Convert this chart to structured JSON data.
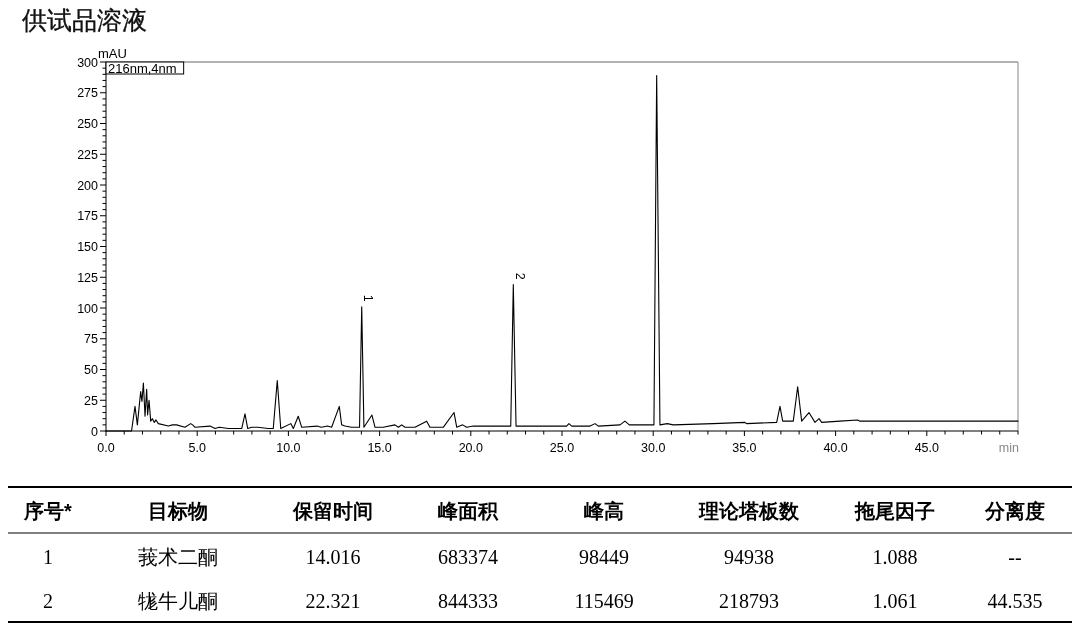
{
  "chart_data": [
    {
      "type": "line",
      "title": "供试品溶液",
      "xlabel": "min",
      "ylabel": "mAU",
      "color": "#000000",
      "x": [
        0,
        1.4,
        1.59,
        1.72,
        1.9,
        1.97,
        2.05,
        2.14,
        2.23,
        2.28,
        2.36,
        2.45,
        2.54,
        2.65,
        2.74,
        2.87,
        3.42,
        3.64,
        3.87,
        4.33,
        4.64,
        4.75,
        4.88,
        5.7,
        5.98,
        6.21,
        6.71,
        7.44,
        7.62,
        7.77,
        7.99,
        8.32,
        8.9,
        9.17,
        9.39,
        9.58,
        10.13,
        10.27,
        10.54,
        10.73,
        11.58,
        11.8,
        12.15,
        12.37,
        12.79,
        12.92,
        13.1,
        13.47,
        13.9,
        14.02,
        14.14,
        14.58,
        14.75,
        15.2,
        15.84,
        16.03,
        16.21,
        16.39,
        16.94,
        17.58,
        17.76,
        18.49,
        19.08,
        19.23,
        19.55,
        19.77,
        20.14,
        21.05,
        21.97,
        22.19,
        22.33,
        22.48,
        23.79,
        25.25,
        25.38,
        25.53,
        26.54,
        26.81,
        26.99,
        28.18,
        28.45,
        28.69,
        30.04,
        30.19,
        30.37,
        30.77,
        31.1,
        33.29,
        35.03,
        35.12,
        36.77,
        36.95,
        37.1,
        37.68,
        37.92,
        38.14,
        38.54,
        38.87,
        39.09,
        39.24,
        40.24,
        41.2,
        41.34,
        42.43,
        45.18,
        50
      ],
      "values": [
        0,
        0,
        20,
        5,
        32,
        24,
        39,
        12,
        34,
        13,
        25,
        8,
        10,
        7,
        9,
        6,
        4,
        5,
        5,
        3,
        6,
        5,
        3,
        4,
        2,
        3,
        2,
        2,
        14,
        2,
        3,
        3,
        2,
        2,
        41,
        2,
        6,
        2,
        12,
        3,
        4,
        3,
        4,
        3,
        20,
        5,
        4,
        3,
        3,
        101,
        3,
        13,
        3,
        3,
        5,
        3,
        5,
        3,
        3,
        8,
        3,
        3,
        15,
        3,
        5,
        3,
        4,
        4,
        4,
        4,
        119,
        4,
        4,
        4,
        6,
        4,
        4,
        6,
        4,
        5,
        8,
        5,
        5,
        289,
        5,
        6,
        5,
        6,
        7,
        6,
        7,
        20,
        8,
        8,
        36,
        8,
        15,
        7,
        10,
        7,
        8,
        9,
        8,
        8,
        8,
        8
      ],
      "xlim": [
        0,
        50
      ],
      "ylim": [
        0,
        300
      ],
      "xticks": [
        {
          "value": 0,
          "label": "0.0"
        },
        {
          "value": 1,
          "label": null
        },
        {
          "value": 2,
          "label": null
        },
        {
          "value": 3,
          "label": null
        },
        {
          "value": 4,
          "label": null
        },
        {
          "value": 5,
          "label": "5.0"
        },
        {
          "value": 6,
          "label": null
        },
        {
          "value": 7,
          "label": null
        },
        {
          "value": 8,
          "label": null
        },
        {
          "value": 9,
          "label": null
        },
        {
          "value": 10,
          "label": "10.0"
        },
        {
          "value": 11,
          "label": null
        },
        {
          "value": 12,
          "label": null
        },
        {
          "value": 13,
          "label": null
        },
        {
          "value": 14,
          "label": null
        },
        {
          "value": 15,
          "label": "15.0"
        },
        {
          "value": 16,
          "label": null
        },
        {
          "value": 17,
          "label": null
        },
        {
          "value": 18,
          "label": null
        },
        {
          "value": 19,
          "label": null
        },
        {
          "value": 20,
          "label": "20.0"
        },
        {
          "value": 21,
          "label": null
        },
        {
          "value": 22,
          "label": null
        },
        {
          "value": 23,
          "label": null
        },
        {
          "value": 24,
          "label": null
        },
        {
          "value": 25,
          "label": "25.0"
        },
        {
          "value": 26,
          "label": null
        },
        {
          "value": 27,
          "label": null
        },
        {
          "value": 28,
          "label": null
        },
        {
          "value": 29,
          "label": null
        },
        {
          "value": 30,
          "label": "30.0"
        },
        {
          "value": 31,
          "label": null
        },
        {
          "value": 32,
          "label": null
        },
        {
          "value": 33,
          "label": null
        },
        {
          "value": 34,
          "label": null
        },
        {
          "value": 35,
          "label": "35.0"
        },
        {
          "value": 36,
          "label": null
        },
        {
          "value": 37,
          "label": null
        },
        {
          "value": 38,
          "label": null
        },
        {
          "value": 39,
          "label": null
        },
        {
          "value": 40,
          "label": "40.0"
        },
        {
          "value": 41,
          "label": null
        },
        {
          "value": 42,
          "label": null
        },
        {
          "value": 43,
          "label": null
        },
        {
          "value": 44,
          "label": null
        },
        {
          "value": 45,
          "label": "45.0"
        },
        {
          "value": 46,
          "label": null
        },
        {
          "value": 47,
          "label": null
        },
        {
          "value": 48,
          "label": null
        },
        {
          "value": 49,
          "label": null
        },
        {
          "value": 50,
          "label": null
        }
      ],
      "yticks": [
        0,
        {
          "value": 5,
          "label": null
        },
        {
          "value": 10,
          "label": null
        },
        {
          "value": 15,
          "label": null
        },
        {
          "value": 20,
          "label": null
        },
        25,
        {
          "value": 30,
          "label": null
        },
        {
          "value": 35,
          "label": null
        },
        {
          "value": 40,
          "label": null
        },
        {
          "value": 45,
          "label": null
        },
        50,
        {
          "value": 55,
          "label": null
        },
        {
          "value": 60,
          "label": null
        },
        {
          "value": 65,
          "label": null
        },
        {
          "value": 70,
          "label": null
        },
        75,
        {
          "value": 80,
          "label": null
        },
        {
          "value": 85,
          "label": null
        },
        {
          "value": 90,
          "label": null
        },
        {
          "value": 95,
          "label": null
        },
        100,
        {
          "value": 105,
          "label": null
        },
        {
          "value": 110,
          "label": null
        },
        {
          "value": 115,
          "label": null
        },
        {
          "value": 120,
          "label": null
        },
        125,
        {
          "value": 130,
          "label": null
        },
        {
          "value": 135,
          "label": null
        },
        {
          "value": 140,
          "label": null
        },
        {
          "value": 145,
          "label": null
        },
        150,
        {
          "value": 155,
          "label": null
        },
        {
          "value": 160,
          "label": null
        },
        {
          "value": 165,
          "label": null
        },
        {
          "value": 170,
          "label": null
        },
        175,
        {
          "value": 180,
          "label": null
        },
        {
          "value": 185,
          "label": null
        },
        {
          "value": 190,
          "label": null
        },
        {
          "value": 195,
          "label": null
        },
        200,
        {
          "value": 205,
          "label": null
        },
        {
          "value": 210,
          "label": null
        },
        {
          "value": 215,
          "label": null
        },
        {
          "value": 220,
          "label": null
        },
        225,
        {
          "value": 230,
          "label": null
        },
        {
          "value": 235,
          "label": null
        },
        {
          "value": 240,
          "label": null
        },
        {
          "value": 245,
          "label": null
        },
        250,
        {
          "value": 255,
          "label": null
        },
        {
          "value": 260,
          "label": null
        },
        {
          "value": 265,
          "label": null
        },
        {
          "value": 270,
          "label": null
        },
        275,
        {
          "value": 280,
          "label": null
        },
        {
          "value": 285,
          "label": null
        },
        {
          "value": 290,
          "label": null
        },
        {
          "value": 295,
          "label": null
        },
        300
      ],
      "annotations": [
        "216nm,4nm",
        {
          "text": "1",
          "x": 14.016,
          "y": 101
        },
        {
          "text": "2",
          "x": 22.321,
          "y": 119
        }
      ]
    },
    {
      "type": "other",
      "categories": [
        "序号*",
        "目标物",
        "保留时间",
        "峰面积",
        "峰高",
        "理论塔板数",
        "拖尾因子",
        "分离度"
      ],
      "cell_labels": [
        [
          "1",
          "莪术二酮",
          "14.016",
          "683374",
          "98449",
          "94938",
          "1.088",
          "--"
        ],
        [
          "2",
          "牻牛儿酮",
          "22.321",
          "844333",
          "115469",
          "218793",
          "1.061",
          "44.535"
        ]
      ]
    }
  ]
}
